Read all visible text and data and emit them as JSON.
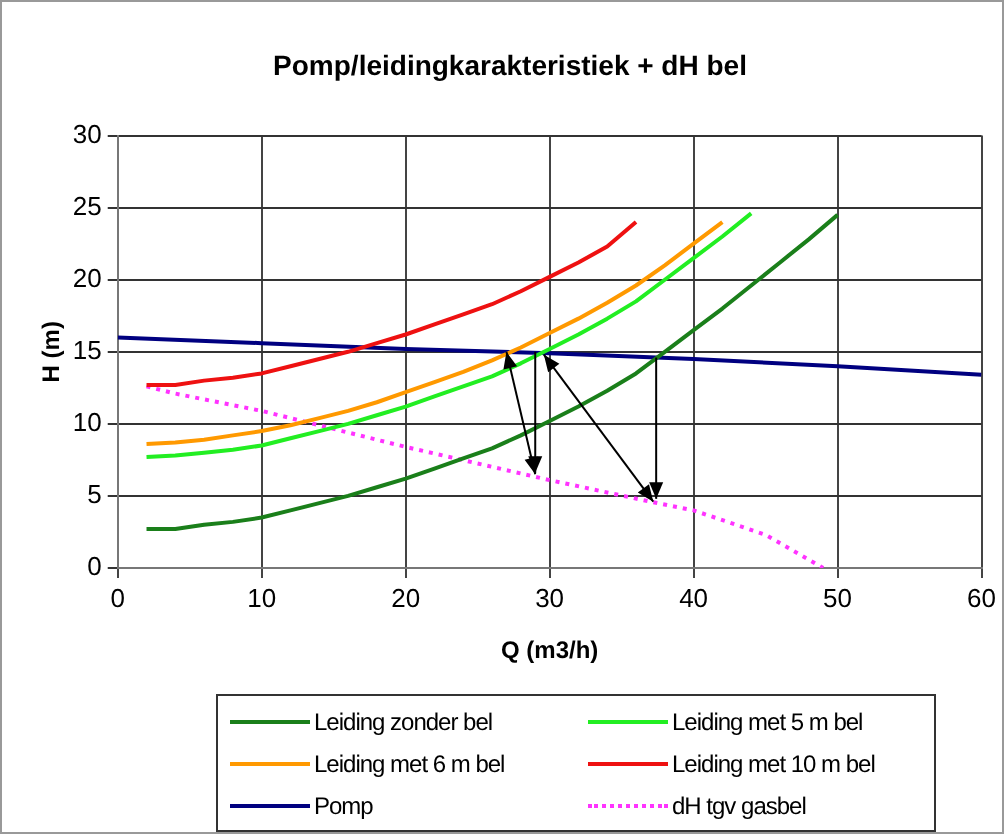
{
  "chart_data": {
    "type": "line",
    "title": "Pomp/leidingkarakteristiek + dH bel",
    "xlabel": "Q (m3/h)",
    "ylabel": "H (m)",
    "xlim": [
      0,
      60
    ],
    "xticks": [
      0,
      10,
      20,
      30,
      40,
      50,
      60
    ],
    "ylim": [
      0,
      30
    ],
    "yticks": [
      0,
      5,
      10,
      15,
      20,
      25,
      30
    ],
    "grid": true,
    "legend": "bottom",
    "marker": "none",
    "series": [
      {
        "name": "Leiding zonder bel",
        "color": "#1a7f1a",
        "x": [
          2,
          4,
          6,
          8,
          10,
          12,
          14,
          16,
          18,
          20,
          22,
          24,
          26,
          28,
          30,
          32,
          34,
          36,
          38,
          40,
          42,
          44,
          46,
          48,
          50
        ],
        "values": [
          2.7,
          2.7,
          3.0,
          3.2,
          3.5,
          4.0,
          4.5,
          5.0,
          5.6,
          6.2,
          6.9,
          7.6,
          8.3,
          9.2,
          10.2,
          11.2,
          12.3,
          13.5,
          15.0,
          16.5,
          18.0,
          19.6,
          21.2,
          22.8,
          24.5
        ]
      },
      {
        "name": "Leiding met 5 m bel",
        "color": "#22ee22",
        "x": [
          2,
          4,
          6,
          8,
          10,
          12,
          14,
          16,
          18,
          20,
          22,
          24,
          26,
          28,
          30,
          32,
          34,
          36,
          38,
          40,
          42,
          44
        ],
        "values": [
          7.7,
          7.8,
          8.0,
          8.2,
          8.5,
          9.0,
          9.5,
          10.0,
          10.6,
          11.2,
          11.9,
          12.6,
          13.3,
          14.2,
          15.2,
          16.2,
          17.3,
          18.5,
          20.0,
          21.5,
          23.0,
          24.6
        ]
      },
      {
        "name": "Leiding met 6 m bel",
        "color": "#ff9900",
        "x": [
          2,
          4,
          6,
          8,
          10,
          12,
          14,
          16,
          18,
          20,
          22,
          24,
          26,
          28,
          30,
          32,
          34,
          36,
          38,
          40,
          42
        ],
        "values": [
          8.6,
          8.7,
          8.9,
          9.2,
          9.5,
          9.9,
          10.4,
          10.9,
          11.5,
          12.2,
          12.9,
          13.6,
          14.4,
          15.3,
          16.3,
          17.3,
          18.4,
          19.6,
          21.0,
          22.5,
          24.0
        ]
      },
      {
        "name": "Leiding met 10 m bel",
        "color": "#ee1111",
        "x": [
          2,
          4,
          6,
          8,
          10,
          12,
          14,
          16,
          18,
          20,
          22,
          24,
          26,
          28,
          30,
          32,
          34,
          36
        ],
        "values": [
          12.7,
          12.7,
          13.0,
          13.2,
          13.5,
          14.0,
          14.5,
          15.0,
          15.6,
          16.2,
          16.9,
          17.6,
          18.3,
          19.2,
          20.2,
          21.2,
          22.3,
          24.0
        ]
      },
      {
        "name": "Pomp",
        "color": "#000080",
        "x": [
          0,
          10,
          20,
          30,
          40,
          50,
          60
        ],
        "values": [
          16.0,
          15.6,
          15.2,
          14.9,
          14.5,
          14.0,
          13.4
        ]
      },
      {
        "name": "dH tgv gasbel",
        "color": "#ff33ff",
        "line_style": "dotted",
        "x": [
          2,
          4,
          10,
          20,
          30,
          37,
          40,
          45,
          49
        ],
        "values": [
          12.6,
          12.1,
          10.9,
          8.4,
          6.1,
          4.6,
          4.0,
          2.3,
          0.0
        ]
      }
    ]
  }
}
